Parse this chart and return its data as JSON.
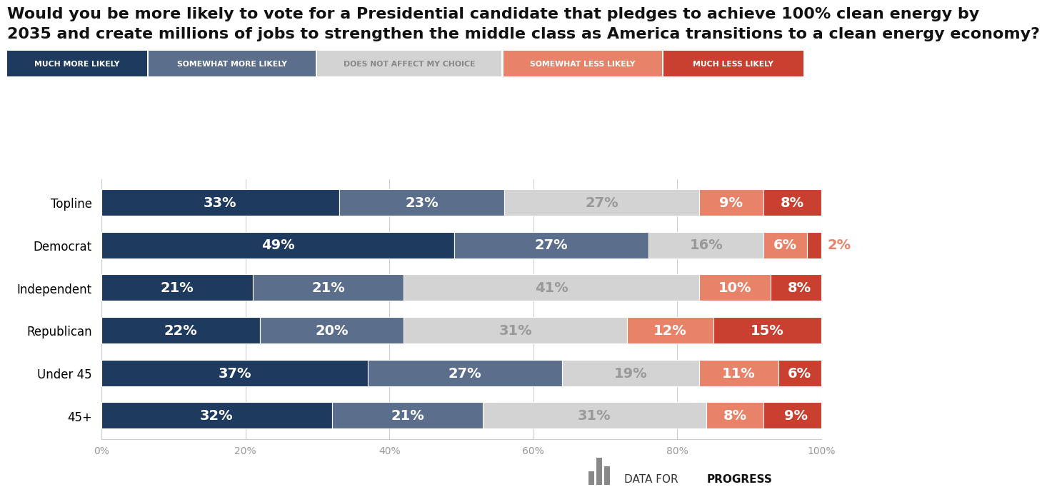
{
  "title_line1": "Would you be more likely to vote for a Presidential candidate that pledges to achieve 100% clean energy by",
  "title_line2": "2035 and create millions of jobs to strengthen the middle class as America transitions to a clean energy economy?",
  "categories": [
    "Topline",
    "Democrat",
    "Independent",
    "Republican",
    "Under 45",
    "45+"
  ],
  "segments": {
    "much_more": [
      33,
      49,
      21,
      22,
      37,
      32
    ],
    "somewhat_more": [
      23,
      27,
      21,
      20,
      27,
      21
    ],
    "does_not_affect": [
      27,
      16,
      41,
      31,
      19,
      31
    ],
    "somewhat_less": [
      9,
      6,
      10,
      12,
      11,
      8
    ],
    "much_less": [
      8,
      2,
      8,
      15,
      6,
      9
    ]
  },
  "colors": {
    "much_more": "#1e3a5f",
    "somewhat_more": "#5b6e8c",
    "does_not_affect": "#d3d3d3",
    "somewhat_less": "#e8836a",
    "much_less": "#c94030"
  },
  "legend_labels": [
    "MUCH MORE LIKELY",
    "SOMEWHAT MORE LIKELY",
    "DOES NOT AFFECT MY CHOICE",
    "SOMEWHAT LESS LIKELY",
    "MUCH LESS LIKELY"
  ],
  "legend_colors": [
    "#1e3a5f",
    "#5b6e8c",
    "#d3d3d3",
    "#e8836a",
    "#c94030"
  ],
  "background_color": "#ffffff",
  "title_fontsize": 16,
  "bar_height": 0.62,
  "label_fontsize": 14
}
